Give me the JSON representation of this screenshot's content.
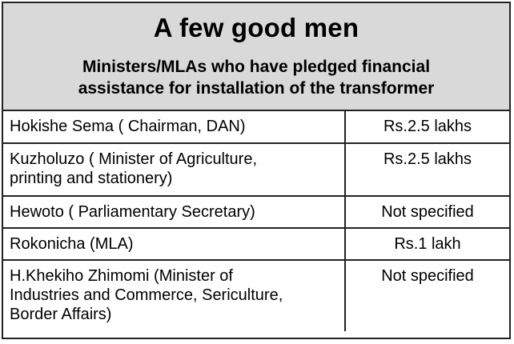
{
  "title": "A few good men",
  "subtitle_line1": "Ministers/MLAs who have pledged financial",
  "subtitle_line2": "assistance for installation of the transformer",
  "rows": [
    {
      "name_lines": [
        "Hokishe Sema ( Chairman, DAN)"
      ],
      "amount": "Rs.2.5 lakhs"
    },
    {
      "name_lines": [
        "Kuzholuzo ( Minister of Agriculture,",
        "printing and stationery)"
      ],
      "amount": "Rs.2.5 lakhs"
    },
    {
      "name_lines": [
        "Hewoto ( Parliamentary Secretary)"
      ],
      "amount": "Not specified"
    },
    {
      "name_lines": [
        "Rokonicha (MLA)"
      ],
      "amount": "Rs.1 lakh"
    },
    {
      "name_lines": [
        "H.Khekiho Zhimomi (Minister of",
        "Industries and Commerce, Sericulture,",
        "Border Affairs)"
      ],
      "amount": "Not specified"
    }
  ],
  "colors": {
    "header_background": "#d9d9d9",
    "border": "#222222",
    "text": "#000000"
  }
}
